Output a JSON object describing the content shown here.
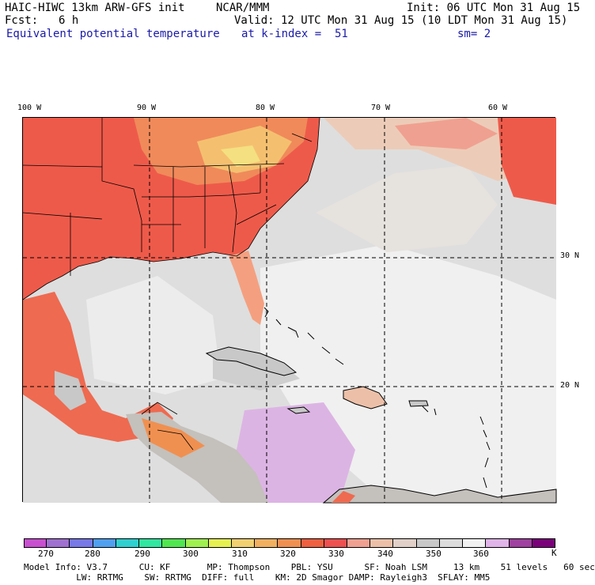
{
  "header": {
    "model": "HAIC-HIWC 13km ARW-GFS init",
    "org": "NCAR/MMM",
    "init": "Init: 06 UTC Mon 31 Aug 15",
    "fcst_label": "Fcst:",
    "fcst_value": "6 h",
    "valid": "Valid: 12 UTC Mon 31 Aug 15 (10 LDT Mon 31 Aug 15)",
    "field": "Equivalent potential temperature",
    "level": "at k-index =  51",
    "smooth": "sm= 2"
  },
  "map": {
    "lon_labels": [
      "100 W",
      "90 W",
      "80 W",
      "70 W",
      "60 W"
    ],
    "lat_labels": [
      "30 N",
      "20 N"
    ]
  },
  "colorbar": {
    "colors": [
      "#c850d0",
      "#a070d0",
      "#7878e6",
      "#50a0f0",
      "#30d0d0",
      "#30e6a0",
      "#50e650",
      "#a0f050",
      "#e6f050",
      "#f0d070",
      "#f0b060",
      "#f09050",
      "#ee6040",
      "#ee5050",
      "#f0a090",
      "#ecc0a8",
      "#e0d0c8",
      "#c8c8c8",
      "#dcdcdc",
      "#f2f2f2",
      "#e0b4e8",
      "#a040a0",
      "#7a007a"
    ],
    "labels": [
      "270",
      "280",
      "290",
      "300",
      "310",
      "320",
      "330",
      "340",
      "350",
      "360",
      "K"
    ]
  },
  "footer": {
    "line1": "Model Info: V3.7      CU: KF       MP: Thompson    PBL: YSU      SF: Noah LSM     13 km    51 levels   60 sec",
    "line2": "          LW: RRTMG    SW: RRTMG  DIFF: full    KM: 2D Smagor DAMP: Rayleigh3  SFLAY: MM5"
  }
}
